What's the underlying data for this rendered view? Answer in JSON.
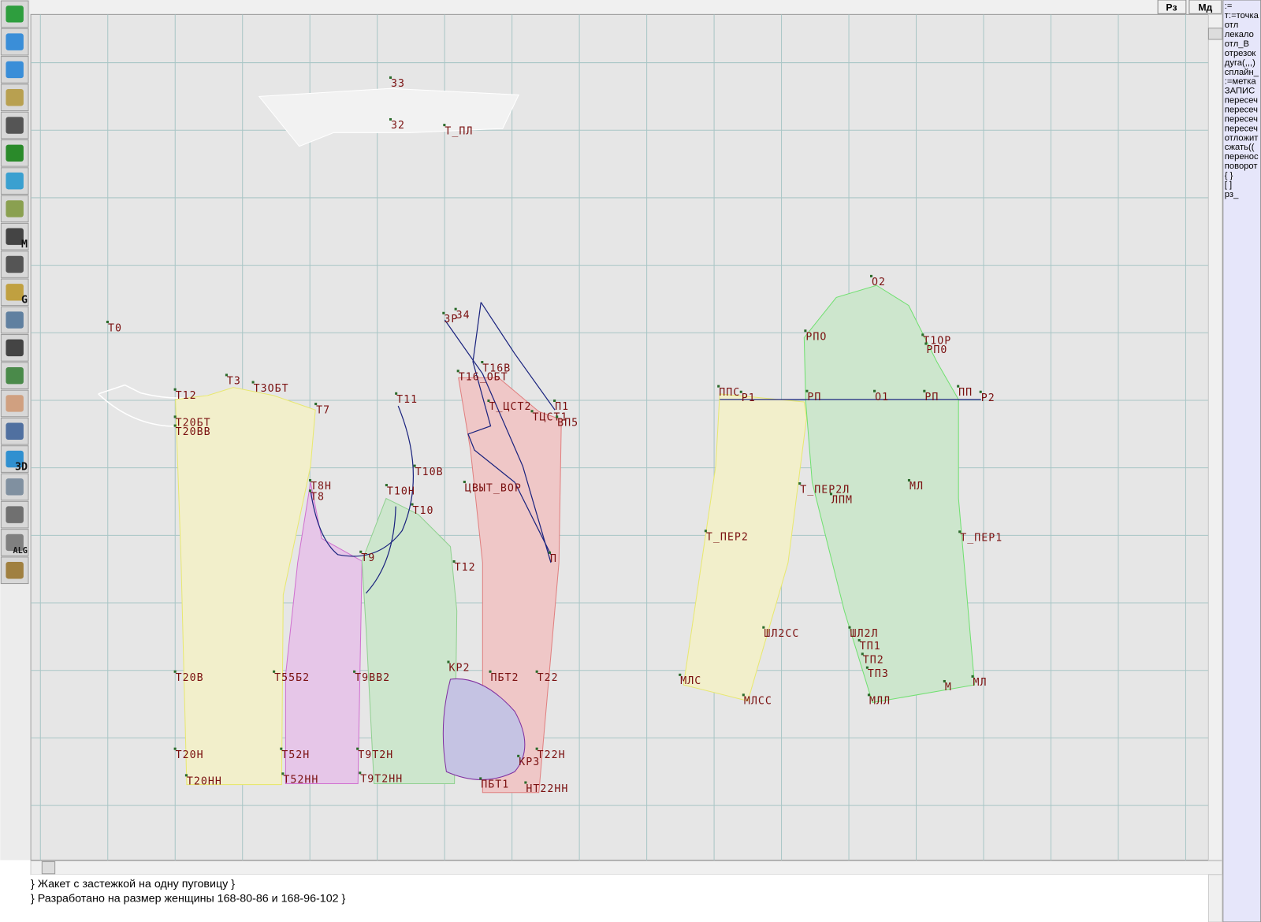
{
  "header": {
    "buttons": [
      "Рз",
      "Мд"
    ]
  },
  "toolbar": {
    "icon_labels": [
      "M",
      "G",
      "3D",
      "ALG"
    ]
  },
  "canvas": {
    "point_labels": [
      "З3",
      "З2",
      "Т_ПЛ",
      "Т0",
      "Т12",
      "Т3",
      "Т3ОБТ",
      "Т7",
      "Т20БТ",
      "Т20ВВ",
      "Т11",
      "Т10В",
      "Т10Н",
      "Т10",
      "Т9",
      "Т12",
      "Т8Н",
      "Т8",
      "Т20В",
      "Т55Б2",
      "Т9ВВ2",
      "КР2",
      "ПБТ2",
      "Т22",
      "Т20Н",
      "Т52Н",
      "Т9Т2Н",
      "Т22Н",
      "КР3",
      "Т20НН",
      "Т52НН",
      "Т9Т2НН",
      "ПБТ1",
      "НТ22НН",
      "З4",
      "ЗР",
      "Т16_ОБТ",
      "Т16В",
      "Т_ЦСТ2",
      "ТЦСТ1",
      "ВП5",
      "П1",
      "ЦВЫТ_ВОР",
      "П",
      "О2",
      "РПО",
      "Т1ОР",
      "РП0",
      "ППС",
      "Р1",
      "РП",
      "О1",
      "РП",
      "ПП",
      "Р2",
      "Т_ПЕР2Л",
      "ЛПМ",
      "МЛ",
      "Т_ПЕР2",
      "Т_ПЕР1",
      "ШЛ2СС",
      "ШЛ2Л",
      "ТП1",
      "ТП2",
      "ТП3",
      "МЛС",
      "МЛ",
      "М",
      "МЛСС",
      "МЛЛ"
    ]
  },
  "command_panel": {
    "items": [
      ":=",
      "т:=точка",
      "отл",
      "лекало",
      "отл_В",
      "отрезок",
      "дуга(,,,)",
      "сплайн_",
      ":=метка",
      "ЗАПИС",
      "пересеч",
      "пересеч",
      "пересеч",
      "пересеч",
      "отложит",
      "сжать((",
      "перенос",
      "поворот",
      "{ }",
      "[ ]",
      "рз_"
    ]
  },
  "status": {
    "lines": [
      "} Жакет с застежкой на одну пуговицу   }",
      "} Разработано на размер женщины 168-80-86 и 168-96-102 }"
    ]
  }
}
